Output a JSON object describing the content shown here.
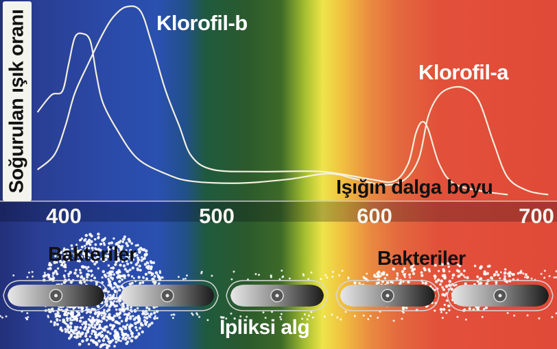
{
  "chart_data": {
    "type": "line",
    "xlabel": "Işığın dalga boyu",
    "ylabel": "Soğurulan ışık oranı",
    "xlim": [
      380,
      710
    ],
    "ylim": [
      0,
      1
    ],
    "x_ticks": [
      "400",
      "500",
      "600",
      "700"
    ],
    "grid": false,
    "background": "visible light spectrum (violet-blue to red)",
    "series": [
      {
        "name": "Klorofil-a",
        "color": "#f4f0e0",
        "points": [
          [
            380,
            0.45
          ],
          [
            389,
            0.54
          ],
          [
            396,
            0.56
          ],
          [
            400,
            0.7
          ],
          [
            404,
            0.84
          ],
          [
            409,
            0.86
          ],
          [
            414,
            0.82
          ],
          [
            418,
            0.64
          ],
          [
            422,
            0.5
          ],
          [
            431,
            0.36
          ],
          [
            444,
            0.21
          ],
          [
            462,
            0.13
          ],
          [
            479,
            0.09
          ],
          [
            510,
            0.08
          ],
          [
            541,
            0.1
          ],
          [
            567,
            0.13
          ],
          [
            585,
            0.1
          ],
          [
            603,
            0.07
          ],
          [
            616,
            0.1
          ],
          [
            625,
            0.21
          ],
          [
            631,
            0.43
          ],
          [
            638,
            0.54
          ],
          [
            647,
            0.58
          ],
          [
            656,
            0.57
          ],
          [
            664,
            0.5
          ],
          [
            673,
            0.29
          ],
          [
            682,
            0.11
          ],
          [
            695,
            0.04
          ],
          [
            708,
            0.02
          ]
        ]
      },
      {
        "name": "Klorofil-b",
        "color": "#f4f0e0",
        "points": [
          [
            380,
            0.15
          ],
          [
            391,
            0.23
          ],
          [
            398,
            0.38
          ],
          [
            404,
            0.55
          ],
          [
            413,
            0.71
          ],
          [
            422,
            0.86
          ],
          [
            429,
            0.95
          ],
          [
            437,
            1.0
          ],
          [
            446,
            0.98
          ],
          [
            453,
            0.82
          ],
          [
            462,
            0.57
          ],
          [
            471,
            0.38
          ],
          [
            479,
            0.22
          ],
          [
            493,
            0.15
          ],
          [
            523,
            0.14
          ],
          [
            563,
            0.14
          ],
          [
            594,
            0.1
          ],
          [
            609,
            0.09
          ],
          [
            618,
            0.18
          ],
          [
            623,
            0.34
          ],
          [
            627,
            0.4
          ],
          [
            631,
            0.36
          ],
          [
            638,
            0.18
          ],
          [
            647,
            0.08
          ],
          [
            664,
            0.04
          ],
          [
            682,
            0.02
          ]
        ]
      }
    ]
  },
  "labels": {
    "klorofil_b": "Klorofil-b",
    "klorofil_a": "Klorofil-a",
    "bacteria_left": "Bakteriler",
    "bacteria_right": "Bakteriler",
    "alga": "İpliksi alg"
  },
  "colors": {
    "curve": "#f4f0e0",
    "bacteria": "#ffffff",
    "label_dark": "#111111"
  }
}
